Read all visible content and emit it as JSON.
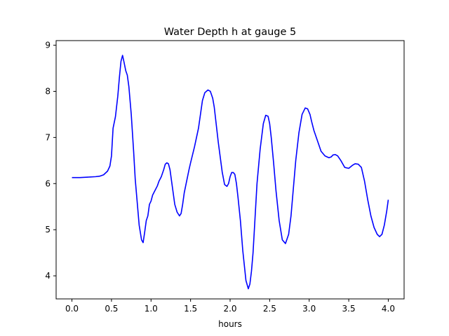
{
  "chart_data": {
    "type": "line",
    "title": "Water Depth h at gauge 5",
    "xlabel": "hours",
    "ylabel": "",
    "xlim": [
      -0.2,
      4.2
    ],
    "ylim": [
      3.5,
      9.1
    ],
    "xticks": [
      0.0,
      0.5,
      1.0,
      1.5,
      2.0,
      2.5,
      3.0,
      3.5,
      4.0
    ],
    "xtick_labels": [
      "0.0",
      "0.5",
      "1.0",
      "1.5",
      "2.0",
      "2.5",
      "3.0",
      "3.5",
      "4.0"
    ],
    "yticks": [
      4,
      5,
      6,
      7,
      8,
      9
    ],
    "ytick_labels": [
      "4",
      "5",
      "6",
      "7",
      "8",
      "9"
    ],
    "grid": false,
    "series": [
      {
        "color": "#0000ff",
        "x": [
          0.0,
          0.1,
          0.2,
          0.3,
          0.35,
          0.4,
          0.45,
          0.48,
          0.5,
          0.52,
          0.55,
          0.58,
          0.6,
          0.62,
          0.64,
          0.66,
          0.68,
          0.7,
          0.72,
          0.75,
          0.78,
          0.8,
          0.82,
          0.85,
          0.88,
          0.9,
          0.92,
          0.94,
          0.96,
          0.98,
          1.0,
          1.02,
          1.05,
          1.08,
          1.1,
          1.13,
          1.16,
          1.18,
          1.2,
          1.22,
          1.24,
          1.26,
          1.28,
          1.3,
          1.33,
          1.36,
          1.38,
          1.4,
          1.42,
          1.45,
          1.48,
          1.5,
          1.55,
          1.6,
          1.65,
          1.68,
          1.72,
          1.75,
          1.78,
          1.8,
          1.85,
          1.9,
          1.93,
          1.96,
          1.98,
          2.0,
          2.02,
          2.04,
          2.06,
          2.08,
          2.1,
          2.13,
          2.16,
          2.2,
          2.23,
          2.25,
          2.27,
          2.29,
          2.31,
          2.34,
          2.38,
          2.42,
          2.45,
          2.48,
          2.5,
          2.52,
          2.55,
          2.58,
          2.62,
          2.66,
          2.7,
          2.74,
          2.77,
          2.8,
          2.83,
          2.87,
          2.91,
          2.95,
          2.98,
          3.01,
          3.03,
          3.06,
          3.1,
          3.15,
          3.2,
          3.25,
          3.28,
          3.3,
          3.33,
          3.36,
          3.4,
          3.45,
          3.5,
          3.55,
          3.58,
          3.62,
          3.66,
          3.7,
          3.74,
          3.78,
          3.82,
          3.86,
          3.89,
          3.92,
          3.95,
          3.98,
          4.0
        ],
        "y": [
          6.13,
          6.13,
          6.14,
          6.15,
          6.16,
          6.19,
          6.27,
          6.38,
          6.6,
          7.2,
          7.45,
          7.9,
          8.3,
          8.65,
          8.78,
          8.62,
          8.45,
          8.35,
          8.1,
          7.5,
          6.7,
          6.1,
          5.7,
          5.1,
          4.78,
          4.72,
          4.95,
          5.2,
          5.3,
          5.55,
          5.62,
          5.75,
          5.85,
          5.95,
          6.05,
          6.15,
          6.3,
          6.42,
          6.45,
          6.43,
          6.3,
          6.05,
          5.8,
          5.55,
          5.38,
          5.3,
          5.35,
          5.55,
          5.8,
          6.05,
          6.3,
          6.45,
          6.8,
          7.2,
          7.8,
          7.97,
          8.03,
          8.0,
          7.85,
          7.65,
          6.9,
          6.25,
          5.98,
          5.94,
          6.0,
          6.15,
          6.24,
          6.24,
          6.2,
          6.0,
          5.7,
          5.2,
          4.55,
          3.9,
          3.72,
          3.82,
          4.1,
          4.5,
          5.1,
          6.0,
          6.75,
          7.3,
          7.48,
          7.46,
          7.3,
          7.0,
          6.45,
          5.85,
          5.2,
          4.78,
          4.7,
          4.9,
          5.3,
          5.9,
          6.5,
          7.1,
          7.5,
          7.64,
          7.62,
          7.5,
          7.35,
          7.15,
          6.95,
          6.7,
          6.6,
          6.56,
          6.58,
          6.62,
          6.63,
          6.6,
          6.5,
          6.35,
          6.33,
          6.4,
          6.43,
          6.42,
          6.35,
          6.05,
          5.65,
          5.3,
          5.05,
          4.9,
          4.85,
          4.9,
          5.1,
          5.4,
          5.65
        ]
      }
    ]
  }
}
